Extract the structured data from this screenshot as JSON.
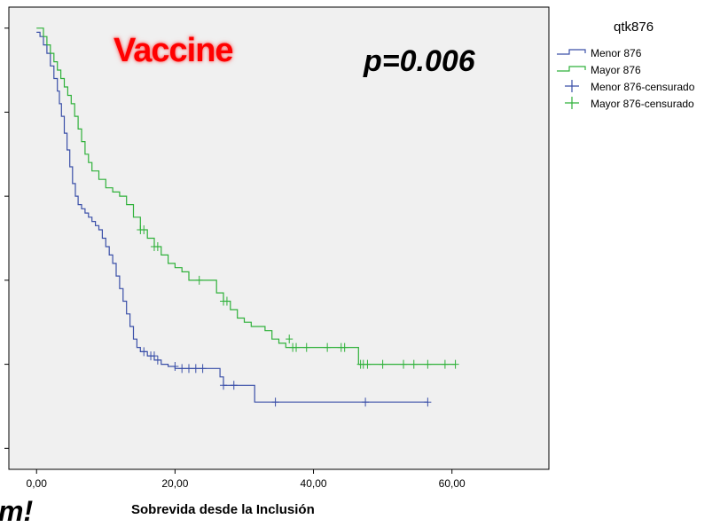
{
  "annotations": {
    "title": "Vaccine",
    "p_value": "p=0.006",
    "cut_text": "m!"
  },
  "legend": {
    "title": "qtk876",
    "items": [
      {
        "label": "Menor 876",
        "kind": "line",
        "color": "#3a4fa8"
      },
      {
        "label": "Mayor 876",
        "kind": "line",
        "color": "#2fb13a"
      },
      {
        "label": "Menor 876-censurado",
        "kind": "cross",
        "color": "#3a4fa8"
      },
      {
        "label": "Mayor 876-censurado",
        "kind": "cross",
        "color": "#2fb13a"
      }
    ]
  },
  "chart_data": {
    "type": "line",
    "step": true,
    "xlabel": "Sobrevida desde la Inclusión",
    "ylabel": "",
    "xlim": [
      -4,
      74
    ],
    "ylim": [
      -0.05,
      1.05
    ],
    "xticks": [
      0,
      20,
      40,
      60
    ],
    "xtick_labels": [
      "0,00",
      "20,00",
      "40,00",
      "60,00"
    ],
    "yticks": [
      0,
      0.2,
      0.4,
      0.6,
      0.8,
      1.0
    ],
    "grid": false,
    "plot_background": "#f0f0f0",
    "legend_position": "right",
    "series": [
      {
        "name": "Menor 876",
        "color": "#3a4fa8",
        "x": [
          0,
          0.5,
          1,
          1.5,
          2,
          2.5,
          3,
          3.3,
          3.6,
          4,
          4.4,
          4.8,
          5.2,
          5.6,
          6,
          6.5,
          7,
          7.5,
          8,
          8.5,
          9,
          9.5,
          10,
          10.5,
          11,
          11.5,
          12,
          12.5,
          13,
          13.5,
          14,
          14.5,
          15,
          16,
          17,
          18,
          19,
          20,
          22,
          24,
          26.5,
          27,
          28,
          31.5,
          56.5
        ],
        "y": [
          0.99,
          0.98,
          0.96,
          0.94,
          0.91,
          0.88,
          0.85,
          0.82,
          0.79,
          0.75,
          0.71,
          0.67,
          0.63,
          0.6,
          0.58,
          0.57,
          0.56,
          0.55,
          0.54,
          0.53,
          0.52,
          0.5,
          0.48,
          0.46,
          0.44,
          0.41,
          0.38,
          0.35,
          0.32,
          0.29,
          0.26,
          0.24,
          0.23,
          0.22,
          0.21,
          0.2,
          0.195,
          0.19,
          0.19,
          0.19,
          0.17,
          0.15,
          0.15,
          0.11,
          0.11
        ],
        "censored_x": [
          15.5,
          16.5,
          17,
          17.5,
          20,
          21,
          22,
          23,
          24,
          27,
          28.5,
          34.5,
          47.5,
          56.5
        ],
        "censored_y": [
          0.23,
          0.22,
          0.22,
          0.21,
          0.195,
          0.19,
          0.19,
          0.19,
          0.19,
          0.15,
          0.15,
          0.11,
          0.11,
          0.11
        ]
      },
      {
        "name": "Mayor 876",
        "color": "#2fb13a",
        "x": [
          0,
          1,
          1.5,
          2,
          2.5,
          3,
          3.5,
          4,
          4.5,
          5,
          5.5,
          6,
          6.5,
          7,
          7.5,
          8,
          9,
          10,
          11,
          12,
          13,
          14,
          15,
          16,
          17,
          18,
          19,
          20,
          21,
          22,
          24,
          26,
          27,
          28,
          29,
          30,
          31,
          33,
          34,
          35,
          36,
          37,
          46.5,
          60.5
        ],
        "y": [
          1.0,
          0.98,
          0.96,
          0.94,
          0.92,
          0.9,
          0.88,
          0.86,
          0.84,
          0.82,
          0.79,
          0.76,
          0.73,
          0.7,
          0.68,
          0.66,
          0.64,
          0.62,
          0.61,
          0.6,
          0.58,
          0.55,
          0.52,
          0.5,
          0.48,
          0.46,
          0.44,
          0.43,
          0.42,
          0.4,
          0.4,
          0.37,
          0.35,
          0.33,
          0.31,
          0.3,
          0.29,
          0.28,
          0.26,
          0.25,
          0.24,
          0.24,
          0.2,
          0.2
        ],
        "censored_x": [
          15,
          15.5,
          17,
          17.5,
          23.5,
          27,
          27.5,
          36.5,
          37,
          37.5,
          39,
          42,
          44,
          44.5,
          46.8,
          47.2,
          47.8,
          50,
          53,
          54.5,
          56.5,
          59,
          60.5
        ],
        "censored_y": [
          0.52,
          0.52,
          0.48,
          0.48,
          0.4,
          0.35,
          0.35,
          0.26,
          0.24,
          0.24,
          0.24,
          0.24,
          0.24,
          0.24,
          0.2,
          0.2,
          0.2,
          0.2,
          0.2,
          0.2,
          0.2,
          0.2,
          0.2
        ]
      }
    ]
  }
}
